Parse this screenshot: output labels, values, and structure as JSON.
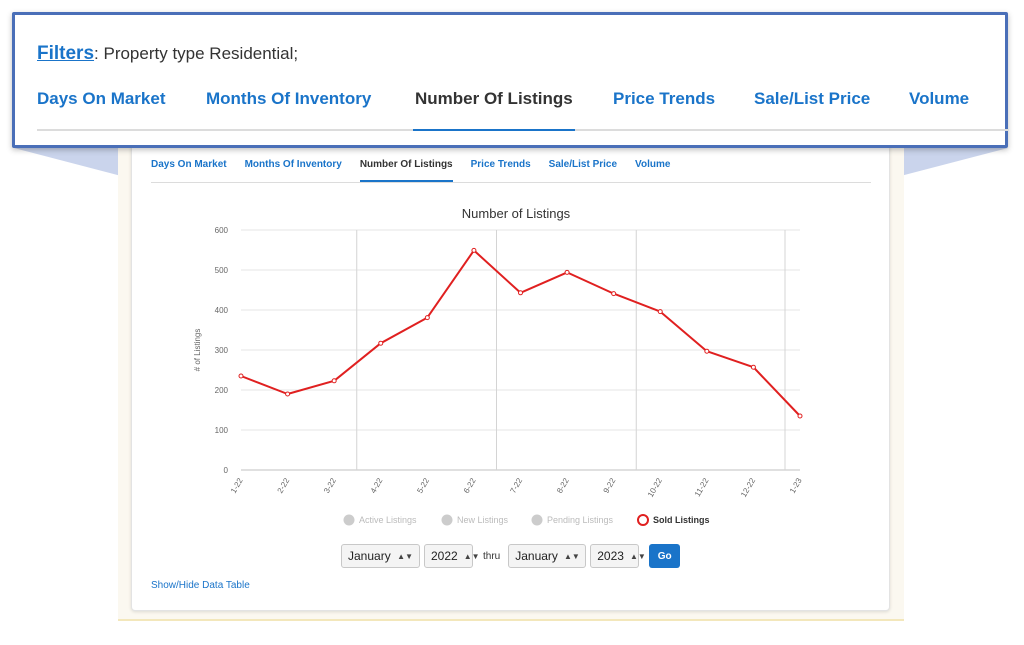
{
  "callout": {
    "filters_link": "Filters",
    "filters_text": ": Property type Residential;",
    "tabs": [
      "Days On Market",
      "Months Of Inventory",
      "Number Of Listings",
      "Price Trends",
      "Sale/List Price",
      "Volume"
    ],
    "active_tab": "Number Of Listings"
  },
  "tabs": [
    "Days On Market",
    "Months Of Inventory",
    "Number Of Listings",
    "Price Trends",
    "Sale/List Price",
    "Volume"
  ],
  "active_tab": "Number Of Listings",
  "colors": {
    "accent": "#1a74c9",
    "series": "#e02020",
    "legend_inactive": "#cccccc"
  },
  "chart_data": {
    "type": "line",
    "title": "Number of Listings",
    "ylabel": "# of Listings",
    "xlabel": "",
    "ylim": [
      0,
      600
    ],
    "yticks": [
      0,
      100,
      200,
      300,
      400,
      500,
      600
    ],
    "categories": [
      "1-22",
      "2-22",
      "3-22",
      "4-22",
      "5-22",
      "6-22",
      "7-22",
      "8-22",
      "9-22",
      "10-22",
      "11-22",
      "12-22",
      "1-23"
    ],
    "series": [
      {
        "name": "Sold Listings",
        "values": [
          235,
          190,
          223,
          317,
          381,
          549,
          443,
          494,
          441,
          396,
          297,
          257,
          135
        ]
      }
    ],
    "legend": [
      {
        "name": "Active Listings",
        "active": false
      },
      {
        "name": "New Listings",
        "active": false
      },
      {
        "name": "Pending Listings",
        "active": false
      },
      {
        "name": "Sold Listings",
        "active": true
      }
    ],
    "legend_placement": "bottom",
    "grid": true
  },
  "controls": {
    "from_month": "January",
    "from_year": "2022",
    "thru_label": "thru",
    "to_month": "January",
    "to_year": "2023",
    "go_label": "Go"
  },
  "show_hide_label": "Show/Hide Data Table"
}
